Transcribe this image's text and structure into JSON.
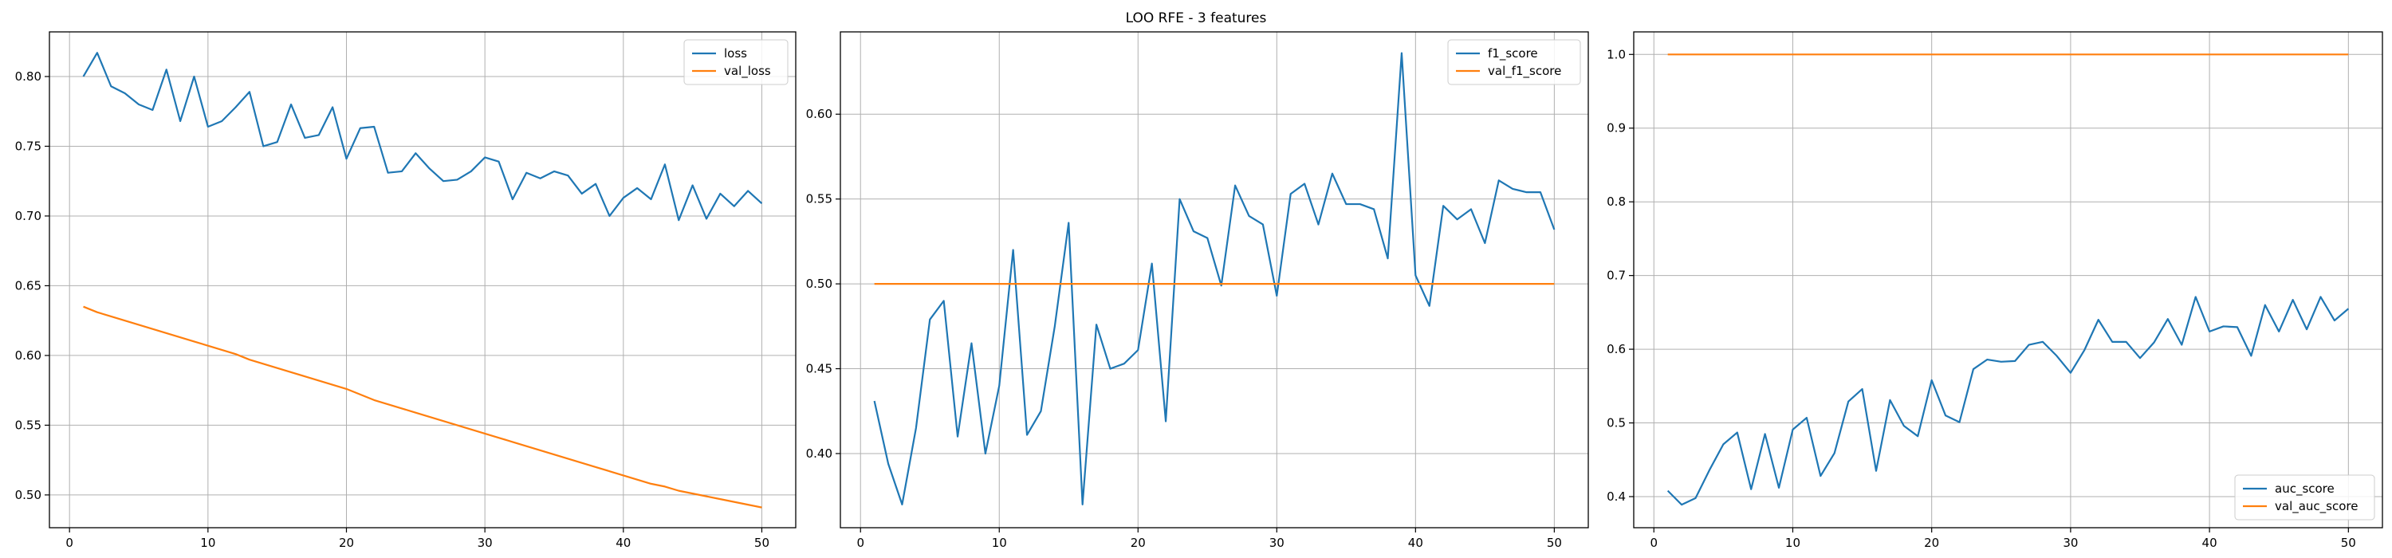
{
  "figure": {
    "suptitle": "LOO RFE - 3 features"
  },
  "colors": {
    "series1": "#1f77b4",
    "series2": "#ff7f0e",
    "grid": "#b0b0b0",
    "axis": "#000000"
  },
  "chart_data": [
    {
      "type": "line",
      "title": "",
      "xlabel": "",
      "ylabel": "",
      "grid": true,
      "legend_position": "top-right",
      "xlim": [
        -1.45,
        52.45
      ],
      "ylim": [
        0.4765,
        0.832
      ],
      "xticks": [
        0,
        10,
        20,
        30,
        40,
        50
      ],
      "yticks": [
        0.5,
        0.55,
        0.6,
        0.65,
        0.7,
        0.75,
        0.8
      ],
      "ytick_labels": [
        "0.50",
        "0.55",
        "0.60",
        "0.65",
        "0.70",
        "0.75",
        "0.80"
      ],
      "x": [
        1,
        2,
        3,
        4,
        5,
        6,
        7,
        8,
        9,
        10,
        11,
        12,
        13,
        14,
        15,
        16,
        17,
        18,
        19,
        20,
        21,
        22,
        23,
        24,
        25,
        26,
        27,
        28,
        29,
        30,
        31,
        32,
        33,
        34,
        35,
        36,
        37,
        38,
        39,
        40,
        41,
        42,
        43,
        44,
        45,
        46,
        47,
        48,
        49,
        50
      ],
      "series": [
        {
          "name": "loss",
          "color": "#1f77b4",
          "values": [
            0.8,
            0.817,
            0.793,
            0.788,
            0.78,
            0.776,
            0.805,
            0.768,
            0.8,
            0.764,
            0.768,
            0.778,
            0.789,
            0.75,
            0.753,
            0.78,
            0.756,
            0.758,
            0.778,
            0.741,
            0.763,
            0.764,
            0.731,
            0.732,
            0.745,
            0.734,
            0.725,
            0.726,
            0.732,
            0.742,
            0.739,
            0.712,
            0.731,
            0.727,
            0.732,
            0.729,
            0.716,
            0.723,
            0.7,
            0.713,
            0.72,
            0.712,
            0.737,
            0.697,
            0.722,
            0.698,
            0.716,
            0.707,
            0.718,
            0.709
          ]
        },
        {
          "name": "val_loss",
          "color": "#ff7f0e",
          "values": [
            0.635,
            0.631,
            0.628,
            0.625,
            0.622,
            0.619,
            0.616,
            0.613,
            0.61,
            0.607,
            0.604,
            0.601,
            0.597,
            0.594,
            0.591,
            0.588,
            0.585,
            0.582,
            0.579,
            0.576,
            0.572,
            0.568,
            0.565,
            0.562,
            0.559,
            0.556,
            0.553,
            0.55,
            0.547,
            0.544,
            0.541,
            0.538,
            0.535,
            0.532,
            0.529,
            0.526,
            0.523,
            0.52,
            0.517,
            0.514,
            0.511,
            0.508,
            0.506,
            0.503,
            0.501,
            0.499,
            0.497,
            0.495,
            0.493,
            0.491
          ]
        }
      ]
    },
    {
      "type": "line",
      "title": "",
      "xlabel": "",
      "ylabel": "",
      "grid": true,
      "legend_position": "top-right",
      "xlim": [
        -1.45,
        52.45
      ],
      "ylim": [
        0.3563,
        0.6485
      ],
      "xticks": [
        0,
        10,
        20,
        30,
        40,
        50
      ],
      "yticks": [
        0.4,
        0.45,
        0.5,
        0.55,
        0.6
      ],
      "ytick_labels": [
        "0.40",
        "0.45",
        "0.50",
        "0.55",
        "0.60"
      ],
      "x": [
        1,
        2,
        3,
        4,
        5,
        6,
        7,
        8,
        9,
        10,
        11,
        12,
        13,
        14,
        15,
        16,
        17,
        18,
        19,
        20,
        21,
        22,
        23,
        24,
        25,
        26,
        27,
        28,
        29,
        30,
        31,
        32,
        33,
        34,
        35,
        36,
        37,
        38,
        39,
        40,
        41,
        42,
        43,
        44,
        45,
        46,
        47,
        48,
        49,
        50
      ],
      "series": [
        {
          "name": "f1_score",
          "color": "#1f77b4",
          "values": [
            0.431,
            0.394,
            0.37,
            0.415,
            0.479,
            0.49,
            0.41,
            0.465,
            0.4,
            0.44,
            0.52,
            0.411,
            0.425,
            0.475,
            0.536,
            0.37,
            0.476,
            0.45,
            0.453,
            0.461,
            0.512,
            0.419,
            0.55,
            0.531,
            0.527,
            0.499,
            0.558,
            0.54,
            0.535,
            0.493,
            0.553,
            0.559,
            0.535,
            0.565,
            0.547,
            0.547,
            0.544,
            0.515,
            0.636,
            0.505,
            0.487,
            0.546,
            0.538,
            0.544,
            0.524,
            0.561,
            0.556,
            0.554,
            0.554,
            0.532
          ]
        },
        {
          "name": "val_f1_score",
          "color": "#ff7f0e",
          "values": [
            0.5,
            0.5,
            0.5,
            0.5,
            0.5,
            0.5,
            0.5,
            0.5,
            0.5,
            0.5,
            0.5,
            0.5,
            0.5,
            0.5,
            0.5,
            0.5,
            0.5,
            0.5,
            0.5,
            0.5,
            0.5,
            0.5,
            0.5,
            0.5,
            0.5,
            0.5,
            0.5,
            0.5,
            0.5,
            0.5,
            0.5,
            0.5,
            0.5,
            0.5,
            0.5,
            0.5,
            0.5,
            0.5,
            0.5,
            0.5,
            0.5,
            0.5,
            0.5,
            0.5,
            0.5,
            0.5,
            0.5,
            0.5,
            0.5,
            0.5
          ]
        }
      ]
    },
    {
      "type": "line",
      "title": "",
      "xlabel": "",
      "ylabel": "",
      "grid": true,
      "legend_position": "bottom-right",
      "xlim": [
        -1.45,
        52.45
      ],
      "ylim": [
        0.3578,
        1.0306
      ],
      "xticks": [
        0,
        10,
        20,
        30,
        40,
        50
      ],
      "yticks": [
        0.4,
        0.5,
        0.6,
        0.7,
        0.8,
        0.9,
        1.0
      ],
      "ytick_labels": [
        "0.4",
        "0.5",
        "0.6",
        "0.7",
        "0.8",
        "0.9",
        "1.0"
      ],
      "x": [
        1,
        2,
        3,
        4,
        5,
        6,
        7,
        8,
        9,
        10,
        11,
        12,
        13,
        14,
        15,
        16,
        17,
        18,
        19,
        20,
        21,
        22,
        23,
        24,
        25,
        26,
        27,
        28,
        29,
        30,
        31,
        32,
        33,
        34,
        35,
        36,
        37,
        38,
        39,
        40,
        41,
        42,
        43,
        44,
        45,
        46,
        47,
        48,
        49,
        50
      ],
      "series": [
        {
          "name": "auc_score",
          "color": "#1f77b4",
          "values": [
            0.408,
            0.389,
            0.398,
            0.436,
            0.471,
            0.487,
            0.41,
            0.485,
            0.412,
            0.491,
            0.507,
            0.428,
            0.459,
            0.529,
            0.546,
            0.435,
            0.531,
            0.496,
            0.482,
            0.558,
            0.51,
            0.501,
            0.573,
            0.586,
            0.583,
            0.584,
            0.606,
            0.61,
            0.591,
            0.568,
            0.599,
            0.64,
            0.61,
            0.61,
            0.588,
            0.609,
            0.641,
            0.606,
            0.671,
            0.624,
            0.631,
            0.63,
            0.591,
            0.66,
            0.624,
            0.667,
            0.627,
            0.671,
            0.639,
            0.655
          ]
        },
        {
          "name": "val_auc_score",
          "color": "#ff7f0e",
          "values": [
            1.0,
            1.0,
            1.0,
            1.0,
            1.0,
            1.0,
            1.0,
            1.0,
            1.0,
            1.0,
            1.0,
            1.0,
            1.0,
            1.0,
            1.0,
            1.0,
            1.0,
            1.0,
            1.0,
            1.0,
            1.0,
            1.0,
            1.0,
            1.0,
            1.0,
            1.0,
            1.0,
            1.0,
            1.0,
            1.0,
            1.0,
            1.0,
            1.0,
            1.0,
            1.0,
            1.0,
            1.0,
            1.0,
            1.0,
            1.0,
            1.0,
            1.0,
            1.0,
            1.0,
            1.0,
            1.0,
            1.0,
            1.0,
            1.0,
            1.0
          ]
        }
      ]
    }
  ]
}
